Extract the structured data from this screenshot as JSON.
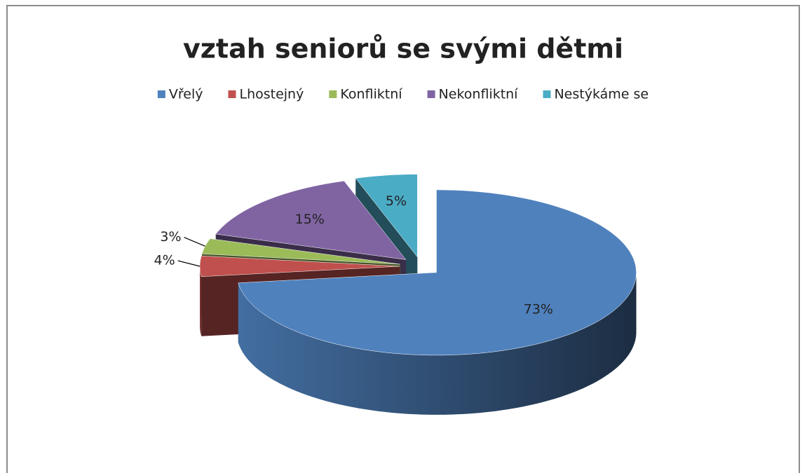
{
  "chart_data": {
    "type": "pie",
    "title": "vztah seniorů se svými dětmi",
    "categories": [
      "Vřelý",
      "Lhostejný",
      "Konfliktní",
      "Nekonfliktní",
      "Nestýkáme se"
    ],
    "values": [
      73,
      4,
      3,
      15,
      5
    ],
    "value_labels": [
      "73%",
      "4%",
      "3%",
      "15%",
      "5%"
    ],
    "colors": [
      "#4f81bd",
      "#c0504d",
      "#9bbb59",
      "#8064a2",
      "#4bacc6"
    ],
    "legend": "top"
  }
}
